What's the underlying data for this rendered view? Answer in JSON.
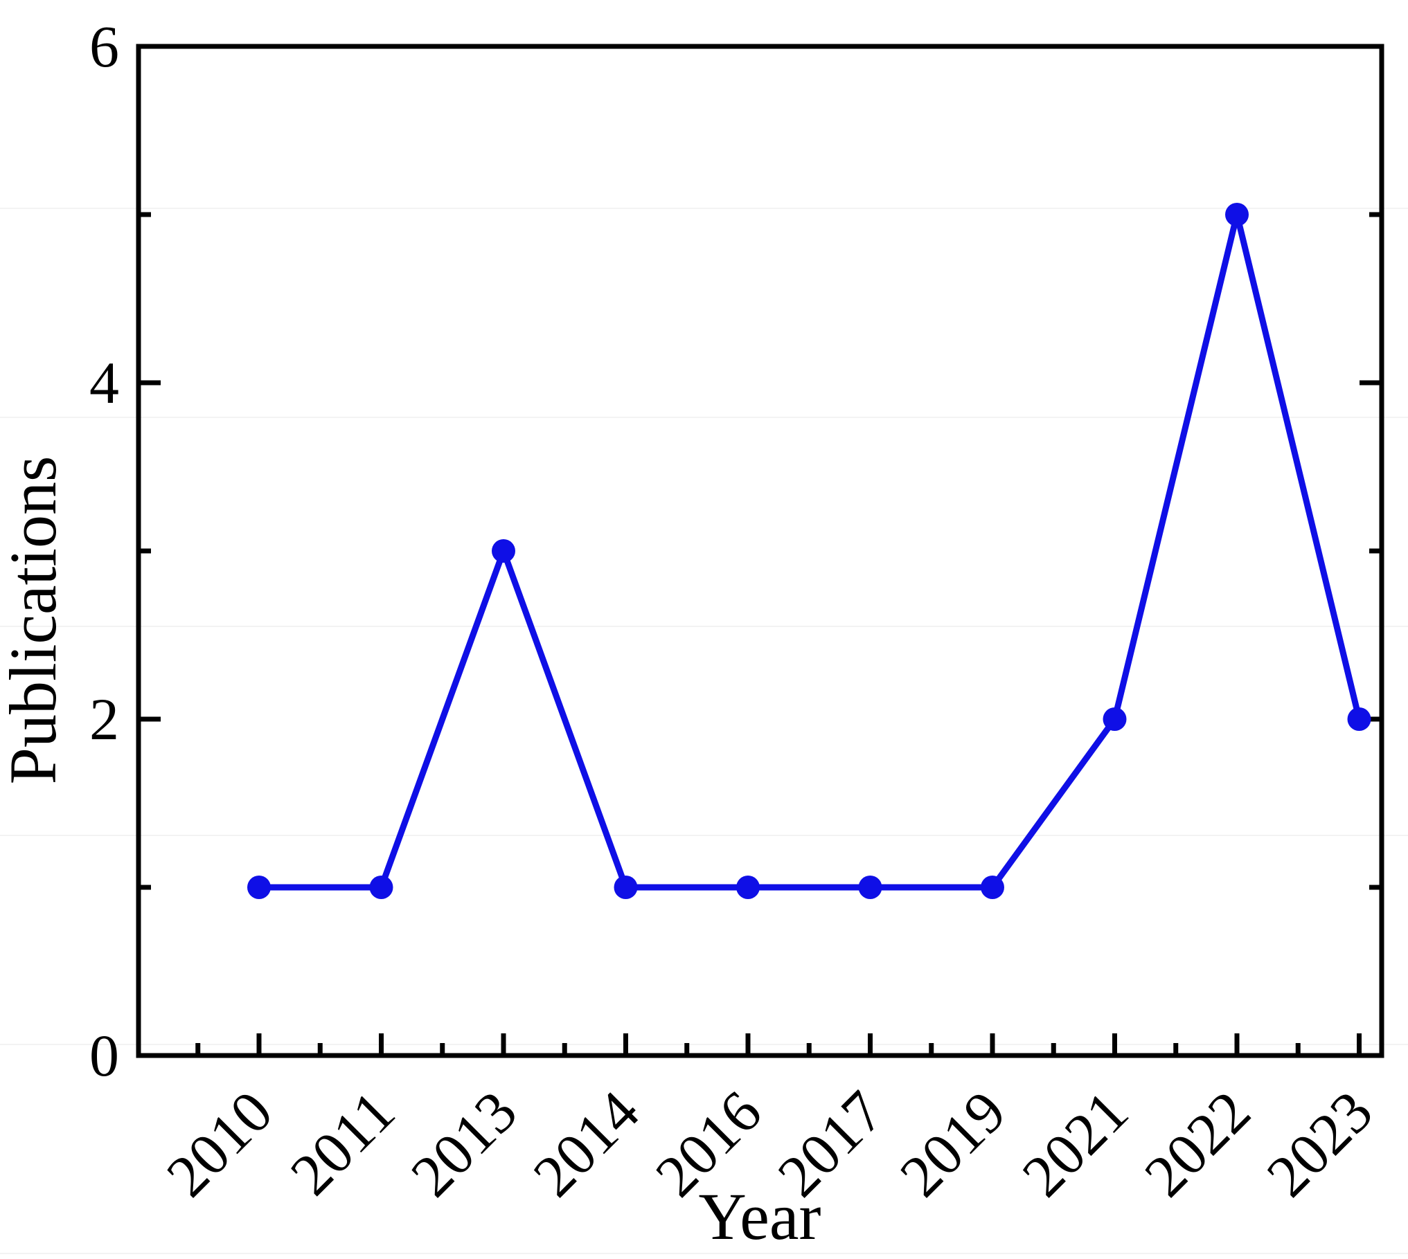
{
  "figure": {
    "background_color": "#ffffff",
    "ruling_line_color": "#f3f3f3"
  },
  "chart_data": {
    "type": "line",
    "title": "",
    "xlabel": "Year",
    "ylabel": "Publications",
    "categories": [
      "2010",
      "2011",
      "2013",
      "2014",
      "2016",
      "2017",
      "2019",
      "2021",
      "2022",
      "2023"
    ],
    "values": [
      1,
      1,
      3,
      1,
      1,
      1,
      1,
      2,
      5,
      2
    ],
    "ylim": [
      0,
      6
    ],
    "yticks_major": [
      0,
      2,
      4,
      6
    ],
    "ytick_labels": [
      "0",
      "2",
      "4",
      "6"
    ],
    "yticks_minor": [
      1,
      3,
      5
    ],
    "x_minor_ticks_between_categories": true,
    "grid": "off",
    "legend_position": "none",
    "line_color": "#0f0fe6",
    "marker": "circle",
    "marker_color": "#0f0fe6",
    "axis_color": "#000000",
    "mirrored_y_ticks": true,
    "top_axis_ticks": false
  }
}
